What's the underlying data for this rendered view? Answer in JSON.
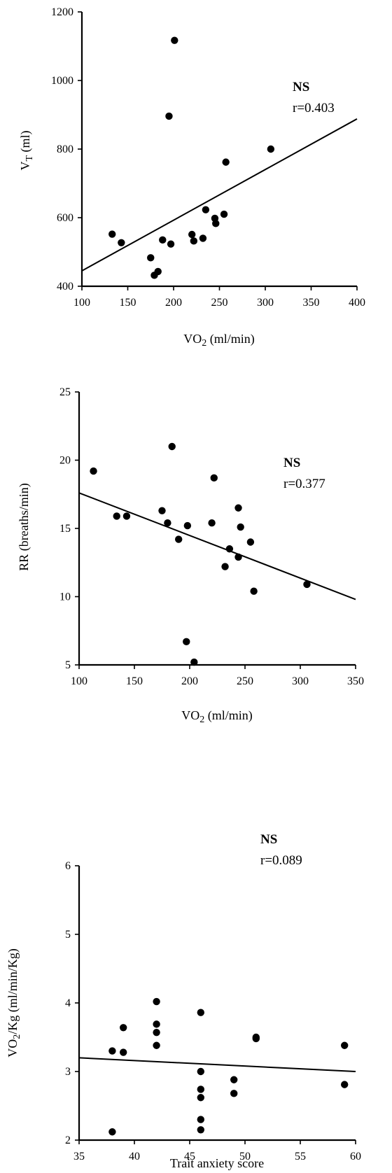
{
  "chart_data": [
    {
      "type": "scatter",
      "xlabel": "VO2 (ml/min)",
      "ylabel": "VT (ml)",
      "xlim": [
        100,
        400
      ],
      "ylim": [
        400,
        1200
      ],
      "xticks": [
        100,
        150,
        200,
        250,
        300,
        350,
        400
      ],
      "yticks": [
        400,
        600,
        800,
        1000,
        1200
      ],
      "annotation": {
        "significance": "NS",
        "r": "r=0.403"
      },
      "fit_line": [
        [
          100,
          445
        ],
        [
          400,
          888
        ]
      ],
      "points": [
        [
          133,
          552
        ],
        [
          143,
          527
        ],
        [
          175,
          483
        ],
        [
          179,
          432
        ],
        [
          183,
          443
        ],
        [
          188,
          535
        ],
        [
          195,
          896
        ],
        [
          197,
          523
        ],
        [
          201,
          1117
        ],
        [
          220,
          551
        ],
        [
          222,
          532
        ],
        [
          232,
          540
        ],
        [
          235,
          623
        ],
        [
          245,
          598
        ],
        [
          246,
          583
        ],
        [
          255,
          610
        ],
        [
          257,
          762
        ],
        [
          306,
          800
        ]
      ]
    },
    {
      "type": "scatter",
      "xlabel": "VO2 (ml/min)",
      "ylabel": "RR (breaths/min)",
      "xlim": [
        100,
        350
      ],
      "ylim": [
        5,
        25
      ],
      "xticks": [
        100,
        150,
        200,
        250,
        300,
        350
      ],
      "yticks": [
        5,
        10,
        15,
        20,
        25
      ],
      "annotation": {
        "significance": "NS",
        "r": "r=0.377"
      },
      "fit_line": [
        [
          100,
          17.6
        ],
        [
          350,
          9.8
        ]
      ],
      "points": [
        [
          113,
          19.2
        ],
        [
          134,
          15.9
        ],
        [
          143,
          15.9
        ],
        [
          175,
          16.3
        ],
        [
          180,
          15.4
        ],
        [
          184,
          21.0
        ],
        [
          190,
          14.2
        ],
        [
          198,
          15.2
        ],
        [
          197,
          6.7
        ],
        [
          204,
          5.2
        ],
        [
          220,
          15.4
        ],
        [
          222,
          18.7
        ],
        [
          232,
          12.2
        ],
        [
          236,
          13.5
        ],
        [
          244,
          12.9
        ],
        [
          244,
          16.5
        ],
        [
          246,
          15.1
        ],
        [
          255,
          14.0
        ],
        [
          258,
          10.4
        ],
        [
          306,
          10.9
        ]
      ]
    },
    {
      "type": "scatter",
      "xlabel": "Trait anxiety score",
      "ylabel": "VO2/Kg (ml/min/Kg)",
      "xlim": [
        35,
        60
      ],
      "ylim": [
        2,
        6
      ],
      "xticks": [
        35,
        40,
        45,
        50,
        55,
        60
      ],
      "yticks": [
        2,
        3,
        4,
        5,
        6
      ],
      "annotation": {
        "significance": "NS",
        "r": "r=0.089"
      },
      "fit_line": [
        [
          35,
          3.2
        ],
        [
          60,
          3.0
        ]
      ],
      "points": [
        [
          38,
          3.3
        ],
        [
          38,
          2.12
        ],
        [
          39,
          3.64
        ],
        [
          39,
          3.28
        ],
        [
          42,
          4.02
        ],
        [
          42,
          3.69
        ],
        [
          42,
          3.57
        ],
        [
          42,
          3.38
        ],
        [
          46,
          3.86
        ],
        [
          46,
          3.0
        ],
        [
          46,
          2.74
        ],
        [
          46,
          2.62
        ],
        [
          46,
          2.3
        ],
        [
          46,
          2.15
        ],
        [
          49,
          2.88
        ],
        [
          49,
          2.68
        ],
        [
          51,
          3.48
        ],
        [
          51,
          3.5
        ],
        [
          59,
          3.38
        ],
        [
          59,
          2.81
        ]
      ]
    }
  ]
}
